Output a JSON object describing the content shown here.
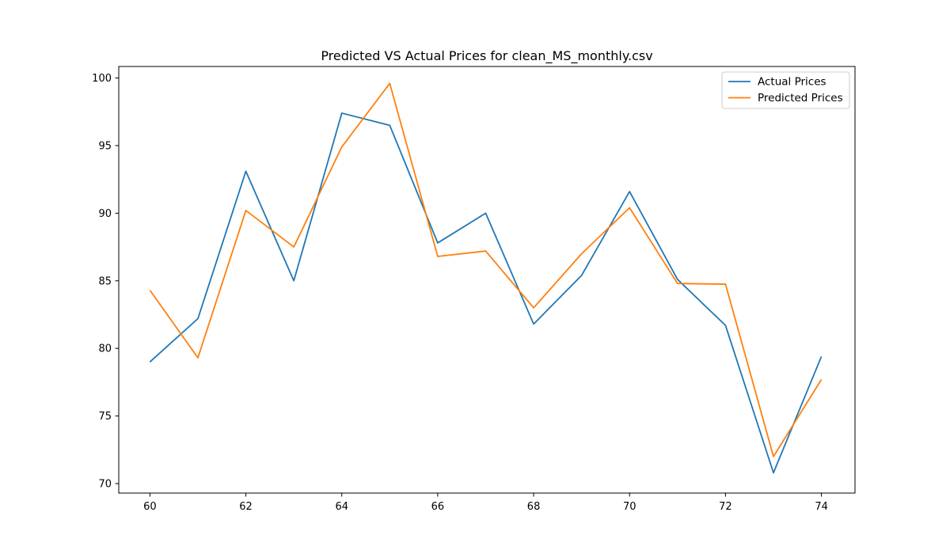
{
  "chart_data": {
    "type": "line",
    "title": "Predicted VS Actual Prices for clean_MS_monthly.csv",
    "xlabel": "",
    "ylabel": "",
    "x": [
      60,
      61,
      62,
      63,
      64,
      65,
      66,
      67,
      68,
      69,
      70,
      71,
      72,
      73,
      74
    ],
    "x_ticks": [
      60,
      62,
      64,
      66,
      68,
      70,
      72,
      74
    ],
    "y_ticks": [
      70,
      75,
      80,
      85,
      90,
      95,
      100
    ],
    "xlim": [
      59.35,
      74.7
    ],
    "ylim": [
      69.3,
      100.85
    ],
    "grid": false,
    "legend_position": "top-right",
    "series": [
      {
        "name": "Actual Prices",
        "color": "#1f77b4",
        "values": [
          79.0,
          82.2,
          93.1,
          85.0,
          97.4,
          96.5,
          87.8,
          90.0,
          81.8,
          85.4,
          91.6,
          85.1,
          81.7,
          70.8,
          79.4
        ]
      },
      {
        "name": "Predicted Prices",
        "color": "#ff7f0e",
        "values": [
          84.3,
          79.3,
          90.2,
          87.5,
          94.9,
          99.6,
          86.8,
          87.2,
          83.0,
          87.0,
          90.4,
          84.8,
          84.75,
          72.0,
          77.7
        ]
      }
    ]
  }
}
